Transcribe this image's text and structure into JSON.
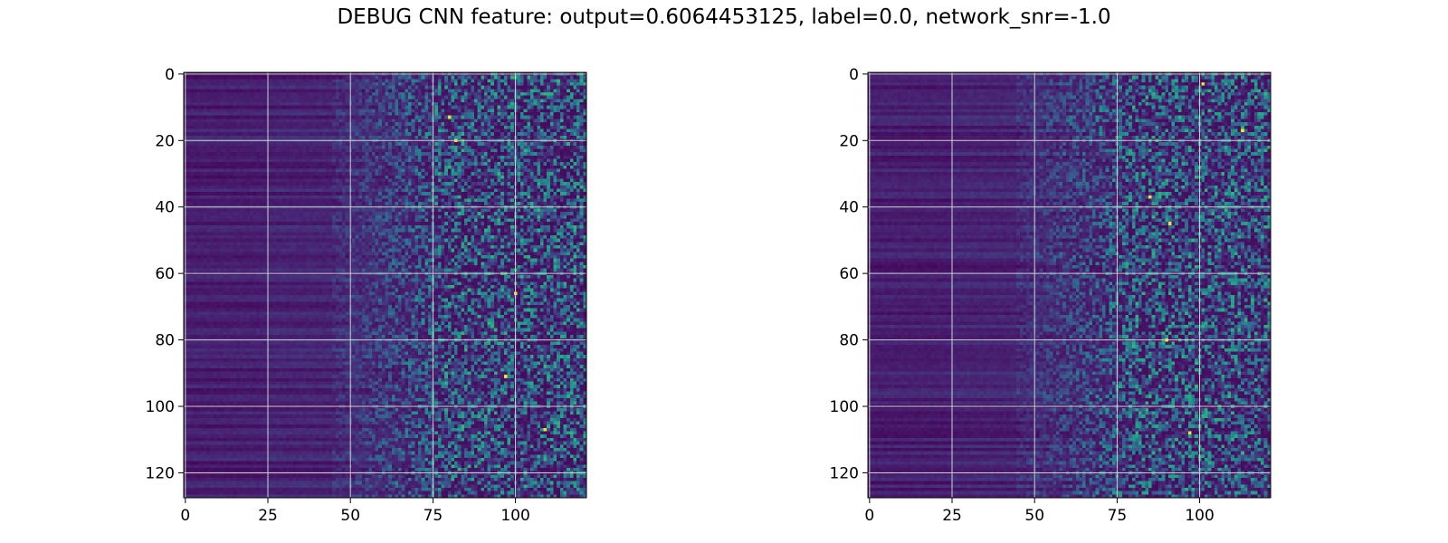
{
  "figure": {
    "title": "DEBUG CNN feature: output=0.6064453125, label=0.0, network_snr=-1.0"
  },
  "chart_data": [
    {
      "type": "heatmap",
      "title": "",
      "xlabel": "",
      "ylabel": "",
      "colormap": "viridis",
      "rows": 128,
      "cols": 122,
      "xlim": [
        -0.5,
        121.5
      ],
      "ylim": [
        127.5,
        -0.5
      ],
      "x_ticks": [
        0,
        25,
        50,
        75,
        100
      ],
      "y_ticks": [
        0,
        20,
        40,
        60,
        80,
        100,
        120
      ],
      "grid": true,
      "values_summary": "Columns 0–50 are uniformly dark (low values) with horizontal row banding; columns 50–75 transition to noisy mid values; columns 75–121 are noisy with scattered bright (green/yellow) cells.",
      "bright_cells": [
        [
          82,
          20
        ],
        [
          100,
          66
        ],
        [
          109,
          107
        ],
        [
          97,
          91
        ],
        [
          80,
          13
        ]
      ]
    },
    {
      "type": "heatmap",
      "title": "",
      "xlabel": "",
      "ylabel": "",
      "colormap": "viridis",
      "rows": 128,
      "cols": 122,
      "xlim": [
        -0.5,
        121.5
      ],
      "ylim": [
        127.5,
        -0.5
      ],
      "x_ticks": [
        0,
        25,
        50,
        75,
        100
      ],
      "y_ticks": [
        0,
        20,
        40,
        60,
        80,
        100,
        120
      ],
      "grid": true,
      "values_summary": "Columns 0–50 are uniformly dark (low values) with horizontal row banding; columns 50–75 transition to noisy mid values; columns 75–121 are noisy with scattered bright (green/yellow) cells.",
      "bright_cells": [
        [
          91,
          45
        ],
        [
          90,
          80
        ],
        [
          85,
          37
        ],
        [
          97,
          108
        ],
        [
          101,
          3
        ],
        [
          113,
          17
        ]
      ]
    }
  ],
  "colors": {
    "viridis_low": "#440154",
    "viridis_mid": "#21918c",
    "viridis_high": "#fde725",
    "grid": "#cfcfcf"
  }
}
